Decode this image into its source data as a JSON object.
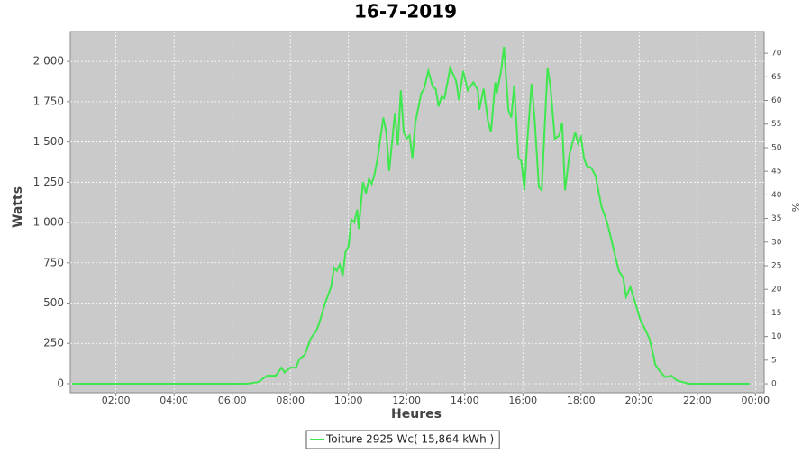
{
  "chart_data": {
    "type": "line",
    "title": "16-7-2019",
    "xlabel": "Heures",
    "ylabel": "Watts",
    "y2label": "%",
    "xlim": [
      0.43,
      24.3
    ],
    "xticks": [
      {
        "value": 2,
        "label": "02:00"
      },
      {
        "value": 4,
        "label": "04:00"
      },
      {
        "value": 6,
        "label": "06:00"
      },
      {
        "value": 8,
        "label": "08:00"
      },
      {
        "value": 10,
        "label": "10:00"
      },
      {
        "value": 12,
        "label": "12:00"
      },
      {
        "value": 14,
        "label": "14:00"
      },
      {
        "value": 16,
        "label": "16:00"
      },
      {
        "value": 18,
        "label": "18:00"
      },
      {
        "value": 20,
        "label": "20:00"
      },
      {
        "value": 22,
        "label": "22:00"
      },
      {
        "value": 24,
        "label": "00:00"
      }
    ],
    "ylim": [
      -56,
      2185
    ],
    "yticks": [
      0,
      250,
      500,
      750,
      {
        "value": 1000,
        "label": "1 000"
      },
      {
        "value": 1250,
        "label": "1 250"
      },
      {
        "value": 1500,
        "label": "1 500"
      },
      {
        "value": 1750,
        "label": "1 750"
      },
      {
        "value": 2000,
        "label": "2 000"
      }
    ],
    "y2lim": [
      -1.9,
      74.6
    ],
    "y2ticks": [
      0,
      5,
      10,
      15,
      20,
      25,
      30,
      35,
      40,
      45,
      50,
      55,
      60,
      65,
      70
    ],
    "grid": true,
    "series": [
      {
        "name": "Toiture 2925 Wc( 15,864 kWh )",
        "color": "#3ee84e",
        "x": [
          0.5,
          6.5,
          6.9,
          7.2,
          7.5,
          7.7,
          7.8,
          8.0,
          8.2,
          8.3,
          8.5,
          8.7,
          8.9,
          9.0,
          9.2,
          9.4,
          9.5,
          9.6,
          9.7,
          9.8,
          9.9,
          10.0,
          10.1,
          10.2,
          10.3,
          10.35,
          10.5,
          10.6,
          10.7,
          10.8,
          10.9,
          11.0,
          11.2,
          11.3,
          11.4,
          11.5,
          11.6,
          11.7,
          11.8,
          11.9,
          12.0,
          12.1,
          12.2,
          12.3,
          12.5,
          12.6,
          12.75,
          12.9,
          13.0,
          13.1,
          13.2,
          13.3,
          13.5,
          13.7,
          13.8,
          13.95,
          14.1,
          14.3,
          14.45,
          14.5,
          14.65,
          14.8,
          14.9,
          15.05,
          15.1,
          15.25,
          15.35,
          15.5,
          15.6,
          15.7,
          15.85,
          15.95,
          16.05,
          16.15,
          16.3,
          16.4,
          16.55,
          16.65,
          16.75,
          16.85,
          16.95,
          17.1,
          17.25,
          17.35,
          17.45,
          17.6,
          17.8,
          17.9,
          18.0,
          18.1,
          18.2,
          18.35,
          18.5,
          18.7,
          18.9,
          19.1,
          19.3,
          19.45,
          19.55,
          19.7,
          19.9,
          20.05,
          20.2,
          20.35,
          20.5,
          20.55,
          20.7,
          20.9,
          21.1,
          21.3,
          21.5,
          21.7,
          23.8
        ],
        "values": [
          0,
          0,
          10,
          50,
          50,
          100,
          70,
          100,
          100,
          150,
          180,
          280,
          330,
          380,
          500,
          600,
          720,
          700,
          740,
          670,
          820,
          850,
          1020,
          1000,
          1080,
          960,
          1250,
          1180,
          1270,
          1240,
          1300,
          1400,
          1650,
          1560,
          1320,
          1500,
          1680,
          1480,
          1820,
          1560,
          1520,
          1540,
          1400,
          1620,
          1800,
          1830,
          1940,
          1840,
          1830,
          1720,
          1780,
          1770,
          1960,
          1880,
          1760,
          1940,
          1820,
          1870,
          1820,
          1700,
          1830,
          1630,
          1560,
          1870,
          1800,
          1940,
          2090,
          1700,
          1650,
          1850,
          1400,
          1380,
          1200,
          1500,
          1860,
          1650,
          1220,
          1200,
          1600,
          1960,
          1840,
          1520,
          1540,
          1620,
          1200,
          1420,
          1560,
          1490,
          1530,
          1400,
          1350,
          1340,
          1290,
          1100,
          1000,
          850,
          700,
          660,
          540,
          600,
          480,
          390,
          340,
          280,
          170,
          120,
          80,
          40,
          50,
          20,
          10,
          0,
          0
        ]
      }
    ]
  }
}
